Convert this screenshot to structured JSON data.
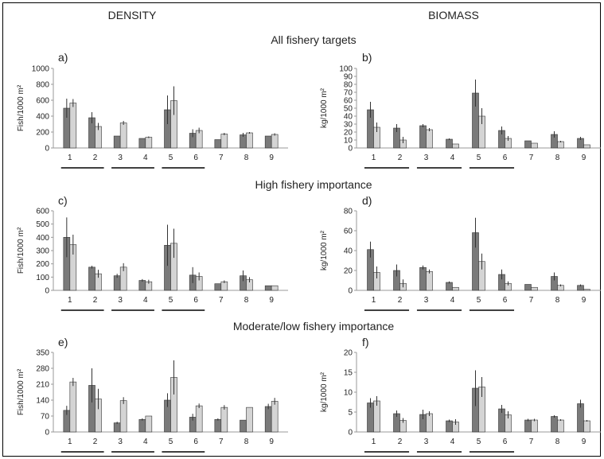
{
  "figure": {
    "col_titles": [
      "DENSITY",
      "BIOMASS"
    ],
    "row_titles": [
      "All fishery targets",
      "High fishery importance",
      "Moderate/low fishery importance"
    ],
    "colors": {
      "series_dark": "#7a7a7a",
      "series_light": "#d4d4d4",
      "axis": "#9a9a9a",
      "bar_stroke": "#333333",
      "error": "#333333",
      "underline": "#000000"
    }
  },
  "chart_data": [
    {
      "type": "bar",
      "panel_label": "a)",
      "ylabel": "Fish/1000 m²",
      "categories": [
        "1",
        "2",
        "3",
        "4",
        "5",
        "6",
        "7",
        "8",
        "9"
      ],
      "ylim": [
        0,
        1000
      ],
      "yticks": [
        0,
        200,
        400,
        600,
        800,
        1000
      ],
      "series": [
        {
          "values": [
            500,
            380,
            150,
            120,
            480,
            185,
            105,
            165,
            150
          ],
          "err": [
            120,
            70,
            0,
            0,
            180,
            50,
            0,
            25,
            0
          ]
        },
        {
          "values": [
            565,
            270,
            315,
            135,
            595,
            220,
            175,
            190,
            170
          ],
          "err": [
            50,
            45,
            25,
            10,
            180,
            35,
            15,
            10,
            15
          ]
        }
      ],
      "groups": [
        [
          1,
          2
        ],
        [
          3,
          4
        ],
        [
          5,
          6
        ]
      ]
    },
    {
      "type": "bar",
      "panel_label": "b)",
      "ylabel": "kg/1000 m²",
      "categories": [
        "1",
        "2",
        "3",
        "4",
        "5",
        "6",
        "7",
        "8",
        "9"
      ],
      "ylim": [
        0,
        100
      ],
      "yticks": [
        0,
        10,
        20,
        30,
        40,
        50,
        60,
        70,
        80,
        90,
        100
      ],
      "series": [
        {
          "values": [
            48,
            25,
            28,
            11,
            69,
            22,
            9,
            17,
            12
          ],
          "err": [
            10,
            5,
            2,
            1,
            17,
            5,
            0,
            4,
            2
          ]
        },
        {
          "values": [
            26,
            10,
            23,
            5,
            40,
            12,
            6,
            8,
            4
          ],
          "err": [
            6,
            4,
            2,
            0,
            10,
            3,
            0,
            1,
            0
          ]
        }
      ],
      "groups": [
        [
          1,
          2
        ],
        [
          3,
          4
        ],
        [
          5,
          6
        ]
      ]
    },
    {
      "type": "bar",
      "panel_label": "c)",
      "ylabel": "Fish/1000 m²",
      "categories": [
        "1",
        "2",
        "3",
        "4",
        "5",
        "6",
        "7",
        "8",
        "9"
      ],
      "ylim": [
        0,
        600
      ],
      "yticks": [
        0,
        100,
        200,
        300,
        400,
        500,
        600
      ],
      "series": [
        {
          "values": [
            400,
            175,
            110,
            75,
            340,
            115,
            50,
            110,
            35
          ],
          "err": [
            150,
            10,
            15,
            10,
            155,
            60,
            0,
            40,
            0
          ]
        },
        {
          "values": [
            345,
            125,
            175,
            65,
            355,
            105,
            65,
            80,
            35
          ],
          "err": [
            75,
            30,
            30,
            15,
            110,
            30,
            10,
            20,
            0
          ]
        }
      ],
      "groups": [
        [
          1,
          2
        ],
        [
          3,
          4
        ],
        [
          5,
          6
        ]
      ]
    },
    {
      "type": "bar",
      "panel_label": "d)",
      "ylabel": "kg/1000 m²",
      "categories": [
        "1",
        "2",
        "3",
        "4",
        "5",
        "6",
        "7",
        "8",
        "9"
      ],
      "ylim": [
        0,
        80
      ],
      "yticks": [
        0,
        20,
        40,
        60,
        80
      ],
      "series": [
        {
          "values": [
            41,
            20,
            23,
            8,
            58,
            16,
            6,
            14,
            5
          ],
          "err": [
            8,
            6,
            2,
            1,
            15,
            5,
            0,
            4,
            1
          ]
        },
        {
          "values": [
            18,
            7,
            19,
            3,
            29,
            7,
            3,
            5,
            1
          ],
          "err": [
            6,
            4,
            2,
            0,
            8,
            2,
            0,
            1,
            0
          ]
        }
      ],
      "groups": [
        [
          1,
          2
        ],
        [
          3,
          4
        ],
        [
          5,
          6
        ]
      ]
    },
    {
      "type": "bar",
      "panel_label": "e)",
      "ylabel": "Fish/1000 m²",
      "categories": [
        "1",
        "2",
        "3",
        "4",
        "5",
        "6",
        "7",
        "8",
        "9"
      ],
      "ylim": [
        0,
        350
      ],
      "yticks": [
        0,
        70,
        140,
        210,
        280,
        350
      ],
      "series": [
        {
          "values": [
            95,
            205,
            40,
            55,
            140,
            65,
            55,
            52,
            112
          ],
          "err": [
            20,
            75,
            5,
            5,
            30,
            15,
            5,
            0,
            12
          ]
        },
        {
          "values": [
            220,
            145,
            138,
            70,
            240,
            115,
            108,
            108,
            135
          ],
          "err": [
            18,
            45,
            15,
            0,
            75,
            10,
            10,
            0,
            15
          ]
        }
      ],
      "groups": [
        [
          1,
          2
        ],
        [
          3,
          4
        ],
        [
          5,
          6
        ]
      ]
    },
    {
      "type": "bar",
      "panel_label": "f)",
      "ylabel": "kg/1000 m²",
      "categories": [
        "1",
        "2",
        "3",
        "4",
        "5",
        "6",
        "7",
        "8",
        "9"
      ],
      "ylim": [
        0,
        20
      ],
      "yticks": [
        0,
        5,
        10,
        15,
        20
      ],
      "series": [
        {
          "values": [
            7.3,
            4.6,
            4.4,
            2.8,
            11,
            5.8,
            3,
            3.9,
            7.1
          ],
          "err": [
            1.2,
            0.8,
            1.2,
            0.3,
            4.5,
            1.0,
            0.3,
            0.3,
            1.0
          ]
        },
        {
          "values": [
            7.8,
            2.9,
            4.6,
            2.5,
            11.3,
            4.3,
            3,
            3.0,
            2.8
          ],
          "err": [
            1.2,
            0.6,
            0.6,
            0.7,
            2.5,
            0.9,
            0.3,
            0.2,
            0.2
          ]
        }
      ],
      "groups": [
        [
          1,
          2
        ],
        [
          3,
          4
        ],
        [
          5,
          6
        ]
      ]
    }
  ]
}
